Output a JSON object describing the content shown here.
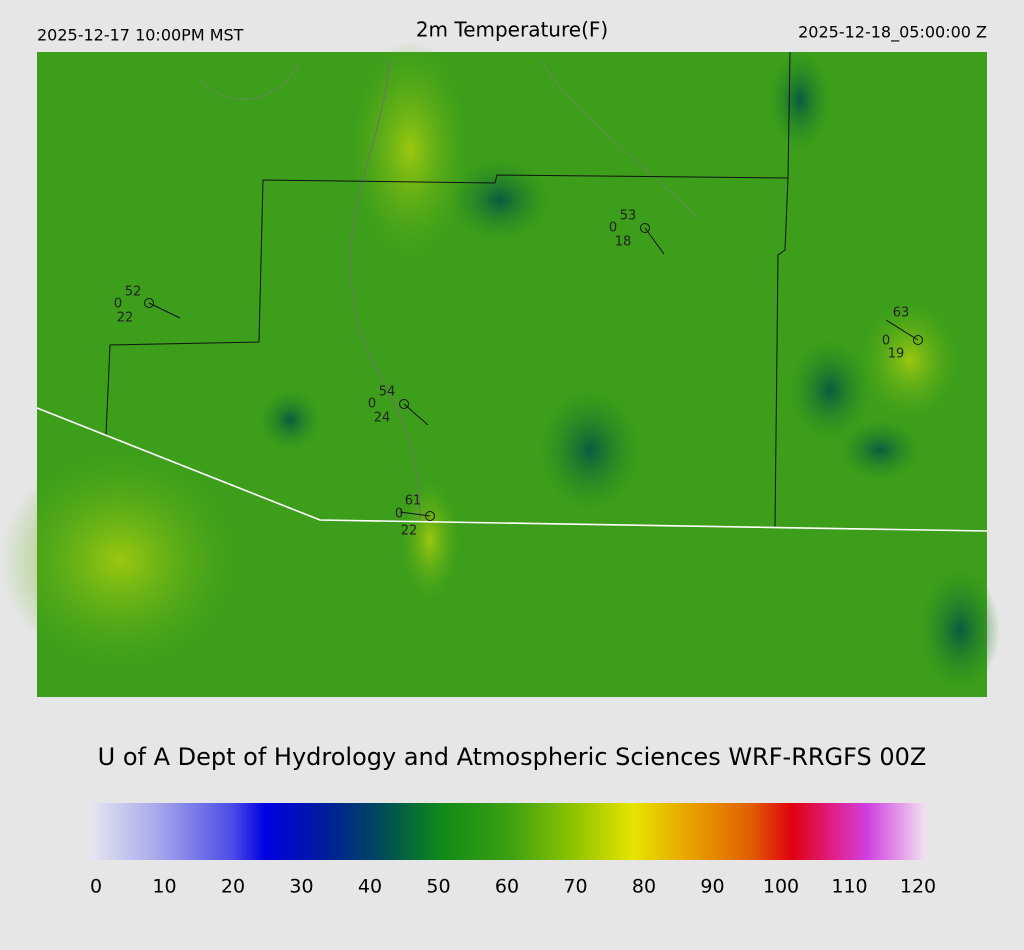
{
  "header": {
    "left": "2025-12-17 10:00PM MST",
    "title": "2m Temperature(F)",
    "right": "2025-12-18_05:00:00 Z"
  },
  "stations": [
    {
      "temp": 52,
      "cloud": 0,
      "dewpoint": 22
    },
    {
      "temp": 53,
      "cloud": 0,
      "dewpoint": 18
    },
    {
      "temp": 54,
      "cloud": 0,
      "dewpoint": 24
    },
    {
      "temp": 61,
      "cloud": 0,
      "dewpoint": 22
    },
    {
      "temp": 63,
      "cloud": 0,
      "dewpoint": 19
    }
  ],
  "credit": "U of A Dept of Hydrology and Atmospheric Sciences WRF-RRGFS 00Z",
  "colorbar": {
    "ticks": [
      0,
      10,
      20,
      30,
      40,
      50,
      60,
      70,
      80,
      90,
      100,
      110,
      120
    ]
  }
}
